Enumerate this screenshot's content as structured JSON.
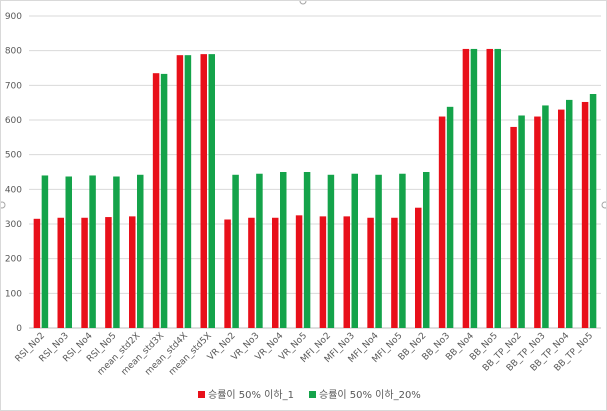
{
  "chart_data": {
    "type": "bar",
    "categories": [
      "RSI_No2",
      "RSI_No3",
      "RSI_No4",
      "RSI_No5",
      "mean_std2X",
      "mean_std3X",
      "mean_std4X",
      "mean_std5X",
      "VR_No2",
      "VR_No3",
      "VR_No4",
      "VR_No5",
      "MFI_No2",
      "MFI_No3",
      "MFI_No4",
      "MFI_No5",
      "BB_No2",
      "BB_No3",
      "BB_No4",
      "BB_No5",
      "BB_TP_No2",
      "BB_TP_No3",
      "BB_TP_No4",
      "BB_TP_No5"
    ],
    "series": [
      {
        "name": "승률이 50% 이하_1",
        "color": "#e8101a",
        "values": [
          315,
          318,
          318,
          320,
          322,
          735,
          787,
          790,
          313,
          318,
          318,
          325,
          322,
          322,
          318,
          318,
          347,
          610,
          805,
          805,
          580,
          610,
          630,
          652
        ]
      },
      {
        "name": "승률이 50% 이하_20%",
        "color": "#14a34a",
        "values": [
          440,
          437,
          440,
          437,
          442,
          733,
          787,
          790,
          442,
          445,
          450,
          450,
          442,
          445,
          442,
          445,
          450,
          638,
          805,
          805,
          613,
          642,
          658,
          675
        ]
      }
    ],
    "title": "",
    "xlabel": "",
    "ylabel": "",
    "ylim": [
      0,
      900
    ],
    "yticks": [
      0,
      100,
      200,
      300,
      400,
      500,
      600,
      700,
      800,
      900
    ],
    "grid": true,
    "legend_position": "bottom"
  }
}
